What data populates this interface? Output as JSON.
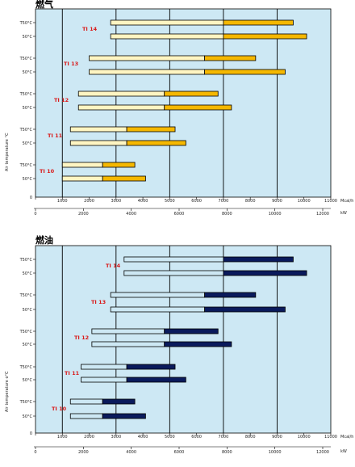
{
  "chart_data": [
    {
      "type": "bar",
      "subtype": "floating-range",
      "title": "燃气",
      "ylabel": "Air temperature °C",
      "x_units_top": "Mcal/h",
      "x_units_bottom": "kW",
      "xlim_mcal": [
        0,
        11000
      ],
      "xticks_mcal": [
        "0",
        "1000",
        "2000",
        "3000",
        "4000",
        "5000",
        "6000",
        "7000",
        "8000",
        "9000",
        "10000",
        "11000"
      ],
      "xticks_kw": [
        "0",
        "2000",
        "4000",
        "6000",
        "8000",
        "10000",
        "12000"
      ],
      "grid": true,
      "colors": {
        "low_stage": "#fff5c2",
        "high_stage": "#f5b800",
        "background": "#cde8f4"
      },
      "groups": [
        {
          "label": "TI 14",
          "rows": [
            {
              "temp": "T50°C",
              "start": 2800,
              "mid": 7000,
              "end": 9600
            },
            {
              "temp": "50°C",
              "start": 2800,
              "mid": 7000,
              "end": 10100
            }
          ]
        },
        {
          "label": "TI 13",
          "rows": [
            {
              "temp": "T50°C",
              "start": 2000,
              "mid": 6300,
              "end": 8200
            },
            {
              "temp": "50°C",
              "start": 2000,
              "mid": 6300,
              "end": 9300
            }
          ]
        },
        {
          "label": "TI 12",
          "rows": [
            {
              "temp": "T50°C",
              "start": 1600,
              "mid": 4800,
              "end": 6800
            },
            {
              "temp": "50°C",
              "start": 1600,
              "mid": 4800,
              "end": 7300
            }
          ]
        },
        {
          "label": "TI 11",
          "rows": [
            {
              "temp": "T50°C",
              "start": 1300,
              "mid": 3400,
              "end": 5200
            },
            {
              "temp": "50°C",
              "start": 1300,
              "mid": 3400,
              "end": 5600
            }
          ]
        },
        {
          "label": "TI 10",
          "rows": [
            {
              "temp": "T50°C",
              "start": 1000,
              "mid": 2500,
              "end": 3700
            },
            {
              "temp": "50°C",
              "start": 1000,
              "mid": 2500,
              "end": 4100
            }
          ]
        }
      ]
    },
    {
      "type": "bar",
      "subtype": "floating-range",
      "title": "燃油",
      "ylabel": "Air temperature o°C",
      "x_units_top": "Mcal/h",
      "x_units_bottom": "kW",
      "xlim_mcal": [
        0,
        11000
      ],
      "xticks_mcal": [
        "0",
        "1000",
        "2000",
        "3000",
        "4000",
        "5000",
        "6000",
        "7000",
        "8000",
        "9000",
        "10000",
        "11000"
      ],
      "xticks_kw": [
        "0",
        "2000",
        "4000",
        "6000",
        "8000",
        "10000",
        "12000"
      ],
      "grid": true,
      "colors": {
        "low_stage": "#cde8f4",
        "high_stage": "#0a1a5c",
        "background": "#cde8f4"
      },
      "groups": [
        {
          "label": "TI 14",
          "rows": [
            {
              "temp": "T50°C",
              "start": 3300,
              "mid": 7000,
              "end": 9600
            },
            {
              "temp": "50°C",
              "start": 3300,
              "mid": 7000,
              "end": 10100
            }
          ]
        },
        {
          "label": "TI 13",
          "rows": [
            {
              "temp": "T50°C",
              "start": 2800,
              "mid": 6300,
              "end": 8200
            },
            {
              "temp": "50°C",
              "start": 2800,
              "mid": 6300,
              "end": 9300
            }
          ]
        },
        {
          "label": "TI 12",
          "rows": [
            {
              "temp": "T50°C",
              "start": 2100,
              "mid": 4800,
              "end": 6800
            },
            {
              "temp": "50°C",
              "start": 2100,
              "mid": 4800,
              "end": 7300
            }
          ]
        },
        {
          "label": "TI 11",
          "rows": [
            {
              "temp": "T50°C",
              "start": 1700,
              "mid": 3400,
              "end": 5200
            },
            {
              "temp": "50°C",
              "start": 1700,
              "mid": 3400,
              "end": 5600
            }
          ]
        },
        {
          "label": "TI 10",
          "rows": [
            {
              "temp": "T50°C",
              "start": 1300,
              "mid": 2500,
              "end": 3700
            },
            {
              "temp": "50°C",
              "start": 1300,
              "mid": 2500,
              "end": 4100
            }
          ]
        }
      ]
    }
  ]
}
